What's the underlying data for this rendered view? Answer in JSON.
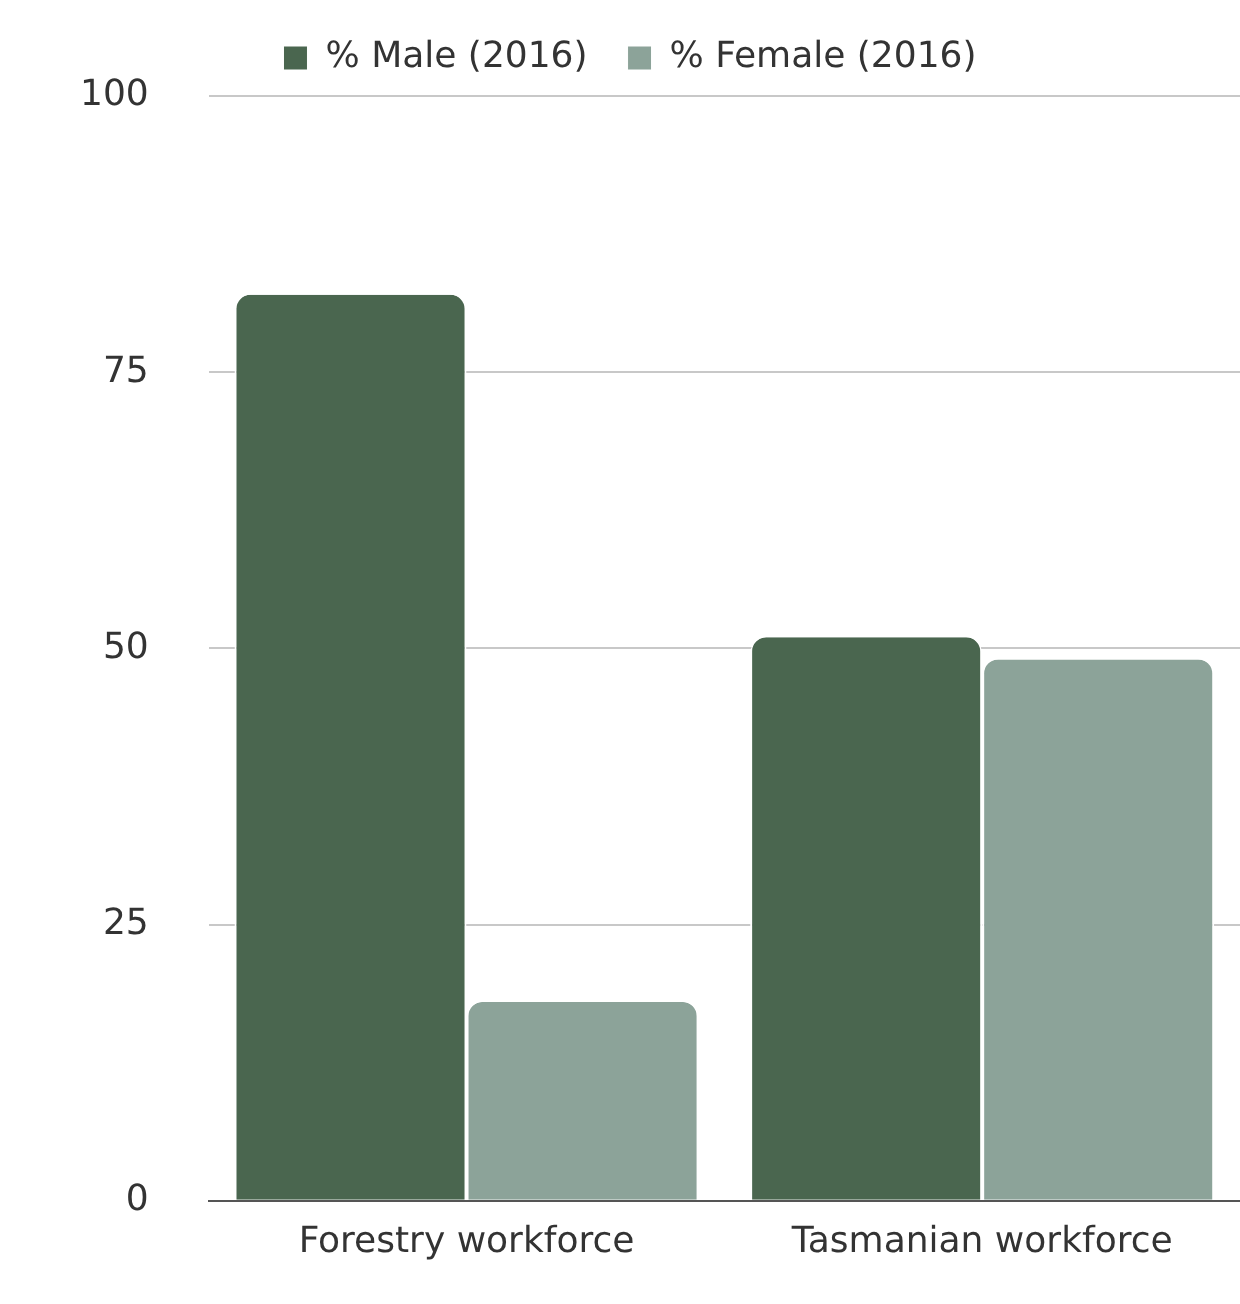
{
  "chart_data": {
    "type": "bar",
    "categories": [
      "Forestry workforce",
      "Tasmanian workforce"
    ],
    "series": [
      {
        "name": "% Male (2016)",
        "color": "#4a664f",
        "values": [
          82,
          51
        ]
      },
      {
        "name": "% Female (2016)",
        "color": "#8ca399",
        "values": [
          18,
          49
        ]
      }
    ],
    "ylim": [
      0,
      100
    ],
    "yticks": [
      0,
      25,
      50,
      75,
      100
    ],
    "grid": "y",
    "legend": "top"
  }
}
